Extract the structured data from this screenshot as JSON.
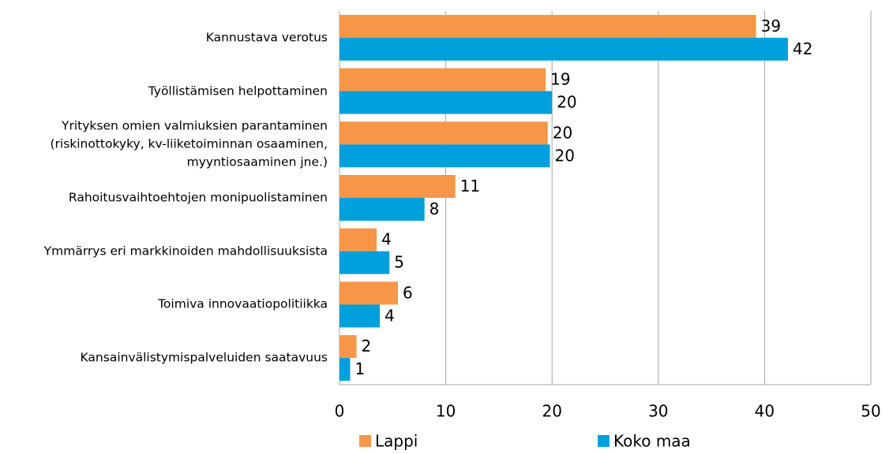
{
  "chart_data": {
    "type": "hbar",
    "categories": [
      "Kannustava verotus",
      "Työllistämisen helpottaminen",
      "Yrityksen omien valmiuksien parantaminen\n(riskinottokyky, kv-liiketoiminnan osaaminen,\nmyyntiosaaminen jne.)",
      "Rahoitusvaihtoehtojen monipuolistaminen",
      "Ymmärrys eri markkinoiden mahdollisuuksista",
      "Toimiva innovaatiopolitiikka",
      "Kansainvälistymispalveluiden saatavuus"
    ],
    "series": [
      {
        "name": "Lappi",
        "color": "#f79646",
        "values": [
          39.2,
          19.4,
          19.6,
          10.9,
          3.5,
          5.5,
          1.6
        ],
        "value_labels": [
          "39",
          "19",
          "20",
          "11",
          "4",
          "6",
          "2"
        ]
      },
      {
        "name": "Koko maa",
        "color": "#00a0dc",
        "values": [
          42.2,
          20.0,
          19.8,
          8.0,
          4.7,
          3.8,
          1.0
        ],
        "value_labels": [
          "42",
          "20",
          "20",
          "8",
          "5",
          "4",
          "1"
        ]
      }
    ],
    "xlim": [
      0,
      50
    ],
    "xticks": [
      0,
      10,
      20,
      30,
      40,
      50
    ],
    "grid": true,
    "legend": "bottom"
  }
}
